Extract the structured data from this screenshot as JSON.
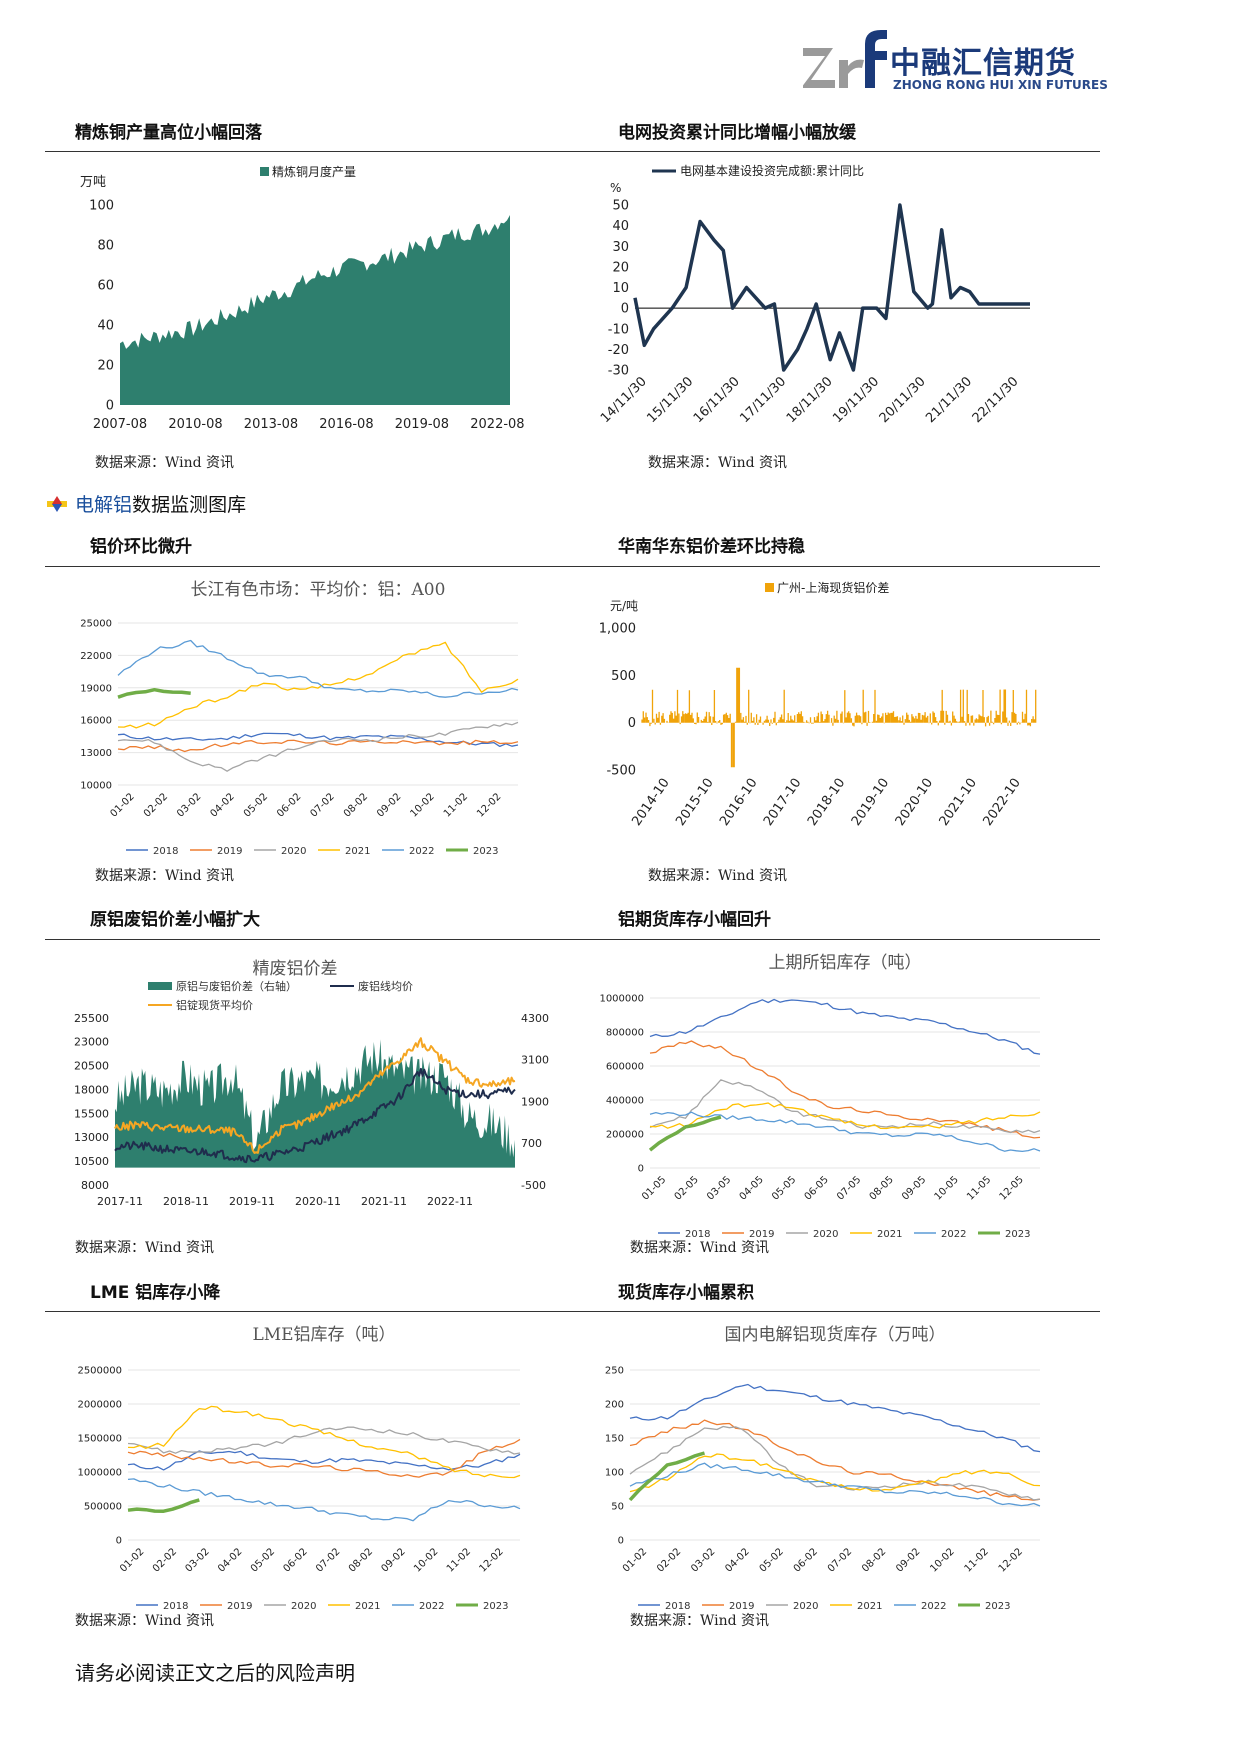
{
  "header": {
    "logo_mark_text": "zrf",
    "company_cn": "中融汇信期货",
    "company_en": "ZHONG RONG HUI XIN FUTURES"
  },
  "section_heading": {
    "highlight": "电解铝",
    "rest": "数据监测图库"
  },
  "sections": {
    "s1": "精炼铜产量高位小幅回落",
    "s2": "电网投资累计同比增幅小幅放缓",
    "s3": "铝价环比微升",
    "s4": "华南华东铝价差环比持稳",
    "s5": "原铝废铝价差小幅扩大",
    "s6": "铝期货库存小幅回升",
    "s7": "LME 铝库存小降",
    "s8": "现货库存小幅累积"
  },
  "source_text": "数据来源：Wind 资讯",
  "footer": "请务必阅读正文之后的风险声明",
  "chart_data": [
    {
      "id": "c1",
      "type": "area",
      "title": "",
      "legend": [
        "精炼铜月度产量"
      ],
      "ylabel": "万吨",
      "ylim": [
        0,
        100
      ],
      "yticks": [
        "0",
        "20",
        "40",
        "60",
        "80",
        "100"
      ],
      "xticks": [
        "2007-08",
        "2010-08",
        "2013-08",
        "2016-08",
        "2019-08",
        "2022-08"
      ],
      "x_years": [
        2007.6,
        2008.5,
        2009.5,
        2010.5,
        2011.5,
        2012.5,
        2013.5,
        2014.5,
        2015.5,
        2016.5,
        2017.5,
        2018.5,
        2019.5,
        2020.5,
        2021.5,
        2022.5,
        2023.1
      ],
      "values": [
        31,
        33,
        36,
        38,
        43,
        48,
        54,
        58,
        64,
        68,
        71,
        74,
        78,
        82,
        86,
        88,
        95
      ],
      "color": "#2e7f6e"
    },
    {
      "id": "c2",
      "type": "line",
      "title": "",
      "legend": [
        "电网基本建设投资完成额:累计同比"
      ],
      "ylabel": "%",
      "ylim": [
        -30,
        50
      ],
      "yticks": [
        "-30",
        "-20",
        "-10",
        "0",
        "10",
        "20",
        "30",
        "40",
        "50"
      ],
      "xticks": [
        "14/11/30",
        "15/11/30",
        "16/11/30",
        "17/11/30",
        "18/11/30",
        "19/11/30",
        "20/11/30",
        "21/11/30",
        "22/11/30"
      ],
      "x": [
        0,
        0.2,
        0.4,
        0.8,
        1.1,
        1.4,
        1.7,
        1.9,
        2.1,
        2.4,
        2.8,
        3.0,
        3.2,
        3.5,
        3.7,
        3.9,
        4.2,
        4.4,
        4.7,
        4.9,
        5.2,
        5.4,
        5.7,
        6.0,
        6.3,
        6.4,
        6.6,
        6.8,
        7.0,
        7.2,
        7.4,
        7.6,
        7.8,
        8.1,
        8.3,
        8.5
      ],
      "values": [
        5,
        -18,
        -10,
        0,
        10,
        42,
        33,
        28,
        0,
        10,
        0,
        2,
        -30,
        -20,
        -10,
        2,
        -25,
        -12,
        -32,
        0,
        0,
        -5,
        50,
        8,
        0,
        2,
        38,
        5,
        10,
        8,
        2,
        2,
        2,
        2,
        2,
        2
      ],
      "color": "#1f3550"
    },
    {
      "id": "c3",
      "type": "line",
      "title": "长江有色市场：平均价：铝：A00",
      "ylim": [
        10000,
        25000
      ],
      "yticks": [
        "10000",
        "13000",
        "16000",
        "19000",
        "22000",
        "25000"
      ],
      "xticks": [
        "01-02",
        "02-02",
        "03-02",
        "04-02",
        "05-02",
        "06-02",
        "07-02",
        "08-02",
        "09-02",
        "10-02",
        "11-02",
        "12-02"
      ],
      "series": [
        {
          "name": "2018",
          "values": [
            14600,
            14300,
            14200,
            14300,
            14800,
            14600,
            14300,
            14500,
            14400,
            14000,
            13800,
            13700
          ]
        },
        {
          "name": "2019",
          "values": [
            13400,
            13500,
            13200,
            13800,
            14000,
            14000,
            13900,
            14000,
            14100,
            13800,
            14000,
            14000
          ]
        },
        {
          "name": "2020",
          "values": [
            14300,
            14000,
            12200,
            11400,
            12500,
            13500,
            14200,
            14200,
            14500,
            14700,
            15400,
            15800
          ]
        },
        {
          "name": "2021",
          "values": [
            15300,
            15600,
            17200,
            18200,
            19500,
            18700,
            19400,
            20400,
            22100,
            23100,
            18700,
            19800
          ]
        },
        {
          "name": "2022",
          "values": [
            20200,
            22500,
            23200,
            21800,
            20200,
            20000,
            18800,
            18700,
            18700,
            18200,
            18600,
            18800
          ]
        },
        {
          "name": "2023",
          "values": [
            18200,
            18800,
            18500
          ]
        }
      ],
      "colors": [
        "#4472c4",
        "#ed7d31",
        "#a5a5a5",
        "#ffc000",
        "#5b9bd5",
        "#70ad47"
      ]
    },
    {
      "id": "c4",
      "type": "bar",
      "title": "",
      "legend": [
        "广州-上海现货铝价差"
      ],
      "ylabel": "元/吨",
      "ylim": [
        -500,
        1000
      ],
      "yticks": [
        "-500",
        "0",
        "500",
        "1,000"
      ],
      "xticks": [
        "2014-10",
        "2015-10",
        "2016-10",
        "2017-10",
        "2018-10",
        "2019-10",
        "2020-10",
        "2021-10",
        "2022-10"
      ],
      "typical_range": [
        -150,
        350
      ],
      "peaks": [
        {
          "x": 2.1,
          "value": 580
        },
        {
          "x": 1.97,
          "value": -470
        },
        {
          "x": 7.9,
          "value": 350
        }
      ],
      "color": "#f0a30a"
    },
    {
      "id": "c5",
      "type": "line",
      "title": "精废铝价差",
      "legend": [
        "原铝与废铝价差（右轴）",
        "废铝线均价",
        "铝锭现货平均价"
      ],
      "ylim_left": [
        8000,
        25500
      ],
      "yticks_left": [
        "8000",
        "10500",
        "13000",
        "15500",
        "18000",
        "20500",
        "23000",
        "25500"
      ],
      "ylim_right": [
        -500,
        4300
      ],
      "yticks_right": [
        "-500",
        "700",
        "1900",
        "3100",
        "4300"
      ],
      "xticks": [
        "2017-11",
        "2018-11",
        "2019-11",
        "2020-11",
        "2021-11",
        "2022-11"
      ],
      "series": [
        {
          "name": "废铝线均价",
          "values": [
            12000,
            12100,
            11800,
            11500,
            11500,
            11000,
            10700,
            11300,
            12000,
            13000,
            14000,
            15500,
            17000,
            20000,
            18000,
            17500,
            17500,
            18000
          ]
        },
        {
          "name": "铝锭现货平均价",
          "values": [
            14000,
            14300,
            14000,
            13900,
            13800,
            13600,
            11500,
            13700,
            14500,
            16000,
            17000,
            19000,
            21000,
            23000,
            21000,
            19000,
            18500,
            18900
          ]
        },
        {
          "name": "原铝与废铝价差（右轴）",
          "values": [
            1900,
            2400,
            2200,
            2600,
            2200,
            2700,
            700,
            2300,
            2500,
            2500,
            2800,
            3200,
            2800,
            2600,
            2700,
            1500,
            1300,
            800
          ]
        }
      ],
      "colors": [
        "#1f2d4d",
        "#f5a623",
        "#2e7f6e"
      ]
    },
    {
      "id": "c6",
      "type": "line",
      "title": "上期所铝库存（吨）",
      "ylim": [
        0,
        1000000
      ],
      "yticks": [
        "0",
        "200000",
        "400000",
        "600000",
        "800000",
        "1000000"
      ],
      "xticks": [
        "01-05",
        "02-05",
        "03-05",
        "04-05",
        "05-05",
        "06-05",
        "07-05",
        "08-05",
        "09-05",
        "10-05",
        "11-05",
        "12-05"
      ],
      "series": [
        {
          "name": "2018",
          "values": [
            770000,
            800000,
            880000,
            980000,
            990000,
            960000,
            910000,
            880000,
            860000,
            810000,
            750000,
            670000
          ]
        },
        {
          "name": "2019",
          "values": [
            680000,
            740000,
            710000,
            590000,
            460000,
            360000,
            340000,
            300000,
            290000,
            260000,
            220000,
            180000
          ]
        },
        {
          "name": "2020",
          "values": [
            250000,
            300000,
            520000,
            470000,
            330000,
            290000,
            240000,
            250000,
            260000,
            240000,
            220000,
            220000
          ]
        },
        {
          "name": "2021",
          "values": [
            240000,
            250000,
            350000,
            380000,
            360000,
            290000,
            250000,
            240000,
            240000,
            270000,
            300000,
            330000
          ]
        },
        {
          "name": "2022",
          "values": [
            320000,
            320000,
            300000,
            290000,
            270000,
            240000,
            200000,
            190000,
            200000,
            160000,
            110000,
            100000
          ]
        },
        {
          "name": "2023",
          "values": [
            110000,
            240000,
            300000
          ]
        }
      ],
      "colors": [
        "#4472c4",
        "#ed7d31",
        "#a5a5a5",
        "#ffc000",
        "#5b9bd5",
        "#70ad47"
      ]
    },
    {
      "id": "c7",
      "type": "line",
      "title": "LME铝库存（吨）",
      "ylim": [
        0,
        2500000
      ],
      "yticks": [
        "0",
        "500000",
        "1000000",
        "1500000",
        "2000000",
        "2500000"
      ],
      "xticks": [
        "01-02",
        "02-02",
        "03-02",
        "04-02",
        "05-02",
        "06-02",
        "07-02",
        "08-02",
        "09-02",
        "10-02",
        "11-02",
        "12-02"
      ],
      "series": [
        {
          "name": "2018",
          "values": [
            1100000,
            1050000,
            1280000,
            1300000,
            1200000,
            1150000,
            1180000,
            1150000,
            1100000,
            1050000,
            1100000,
            1260000
          ]
        },
        {
          "name": "2019",
          "values": [
            1300000,
            1250000,
            1200000,
            1150000,
            1100000,
            1100000,
            1050000,
            1000000,
            950000,
            980000,
            1300000,
            1480000
          ]
        },
        {
          "name": "2020",
          "values": [
            1450000,
            1300000,
            1300000,
            1350000,
            1400000,
            1550000,
            1650000,
            1620000,
            1550000,
            1450000,
            1350000,
            1280000
          ]
        },
        {
          "name": "2021",
          "values": [
            1350000,
            1400000,
            1950000,
            1900000,
            1800000,
            1650000,
            1500000,
            1350000,
            1250000,
            1050000,
            950000,
            950000
          ]
        },
        {
          "name": "2022",
          "values": [
            900000,
            800000,
            700000,
            620000,
            530000,
            470000,
            380000,
            310000,
            300000,
            590000,
            520000,
            460000
          ]
        },
        {
          "name": "2023",
          "values": [
            450000,
            420000,
            590000
          ]
        }
      ],
      "colors": [
        "#4472c4",
        "#ed7d31",
        "#a5a5a5",
        "#ffc000",
        "#5b9bd5",
        "#70ad47"
      ]
    },
    {
      "id": "c8",
      "type": "line",
      "title": "国内电解铝现货库存（万吨）",
      "ylim": [
        0,
        250
      ],
      "yticks": [
        "0",
        "50",
        "100",
        "150",
        "200",
        "250"
      ],
      "xticks": [
        "01-02",
        "02-02",
        "03-02",
        "04-02",
        "05-02",
        "06-02",
        "07-02",
        "08-02",
        "09-02",
        "10-02",
        "11-02",
        "12-02"
      ],
      "series": [
        {
          "name": "2018",
          "values": [
            178,
            180,
            205,
            228,
            220,
            210,
            200,
            190,
            180,
            165,
            150,
            130
          ]
        },
        {
          "name": "2019",
          "values": [
            140,
            160,
            175,
            165,
            140,
            115,
            100,
            95,
            85,
            75,
            65,
            60
          ]
        },
        {
          "name": "2020",
          "values": [
            100,
            130,
            165,
            165,
            110,
            80,
            75,
            80,
            85,
            80,
            70,
            60
          ]
        },
        {
          "name": "2021",
          "values": [
            70,
            90,
            125,
            120,
            105,
            85,
            75,
            75,
            85,
            100,
            100,
            80
          ]
        },
        {
          "name": "2022",
          "values": [
            80,
            95,
            110,
            105,
            95,
            85,
            78,
            70,
            70,
            65,
            55,
            50
          ]
        },
        {
          "name": "2023",
          "values": [
            60,
            110,
            128
          ]
        }
      ],
      "colors": [
        "#4472c4",
        "#ed7d31",
        "#a5a5a5",
        "#ffc000",
        "#5b9bd5",
        "#70ad47"
      ]
    }
  ]
}
